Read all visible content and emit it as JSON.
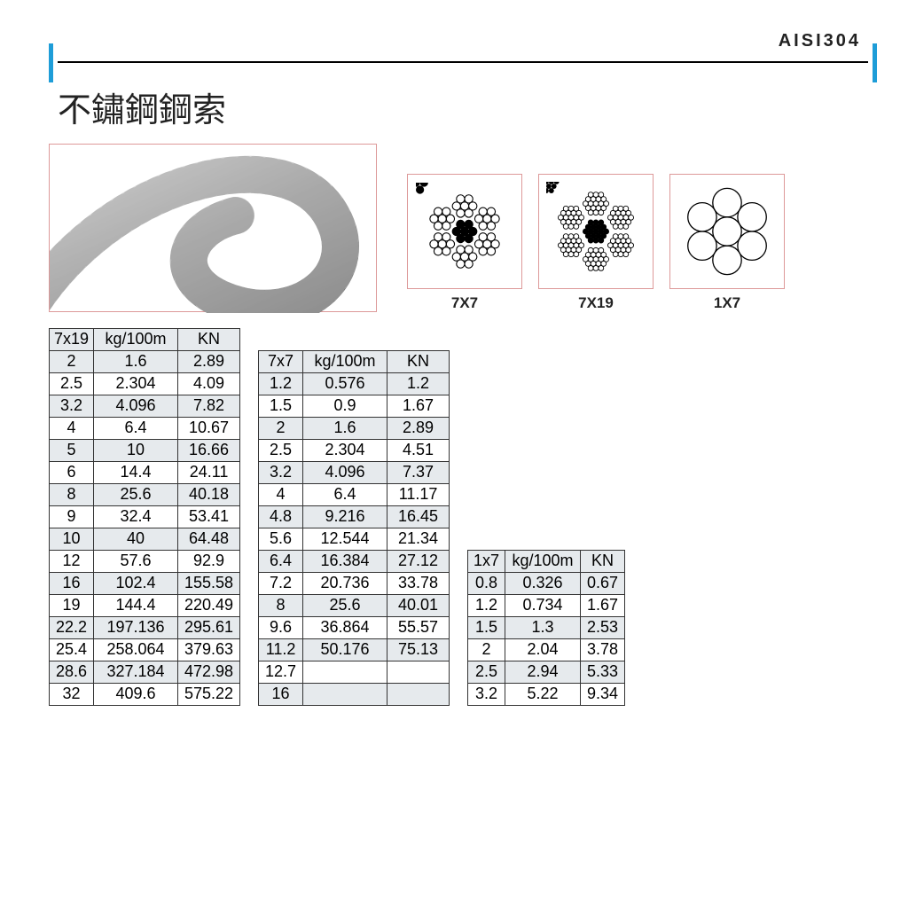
{
  "header": {
    "code": "AISI304",
    "title": "不鏽鋼鋼索",
    "accent_color": "#1e9dd8",
    "line_color": "#000000"
  },
  "photo_border_color": "#d99",
  "diagrams": [
    {
      "label": "7X7",
      "id": "diag-7x7"
    },
    {
      "label": "7X19",
      "id": "diag-7x19"
    },
    {
      "label": "1X7",
      "id": "diag-1x7"
    }
  ],
  "tables": {
    "header_bg": "#e6eaed",
    "stripe_bg": "#e6eaed",
    "border_color": "#333333"
  },
  "table1": {
    "columns": [
      "7x19",
      "kg/100m",
      "KN"
    ],
    "rows": [
      [
        "2",
        "1.6",
        "2.89"
      ],
      [
        "2.5",
        "2.304",
        "4.09"
      ],
      [
        "3.2",
        "4.096",
        "7.82"
      ],
      [
        "4",
        "6.4",
        "10.67"
      ],
      [
        "5",
        "10",
        "16.66"
      ],
      [
        "6",
        "14.4",
        "24.11"
      ],
      [
        "8",
        "25.6",
        "40.18"
      ],
      [
        "9",
        "32.4",
        "53.41"
      ],
      [
        "10",
        "40",
        "64.48"
      ],
      [
        "12",
        "57.6",
        "92.9"
      ],
      [
        "16",
        "102.4",
        "155.58"
      ],
      [
        "19",
        "144.4",
        "220.49"
      ],
      [
        "22.2",
        "197.136",
        "295.61"
      ],
      [
        "25.4",
        "258.064",
        "379.63"
      ],
      [
        "28.6",
        "327.184",
        "472.98"
      ],
      [
        "32",
        "409.6",
        "575.22"
      ]
    ]
  },
  "table2": {
    "columns": [
      "7x7",
      "kg/100m",
      "KN"
    ],
    "rows": [
      [
        "1.2",
        "0.576",
        "1.2"
      ],
      [
        "1.5",
        "0.9",
        "1.67"
      ],
      [
        "2",
        "1.6",
        "2.89"
      ],
      [
        "2.5",
        "2.304",
        "4.51"
      ],
      [
        "3.2",
        "4.096",
        "7.37"
      ],
      [
        "4",
        "6.4",
        "11.17"
      ],
      [
        "4.8",
        "9.216",
        "16.45"
      ],
      [
        "5.6",
        "12.544",
        "21.34"
      ],
      [
        "6.4",
        "16.384",
        "27.12"
      ],
      [
        "7.2",
        "20.736",
        "33.78"
      ],
      [
        "8",
        "25.6",
        "40.01"
      ],
      [
        "9.6",
        "36.864",
        "55.57"
      ],
      [
        "11.2",
        "50.176",
        "75.13"
      ],
      [
        "12.7",
        "",
        ""
      ],
      [
        "16",
        "",
        ""
      ]
    ]
  },
  "table3": {
    "columns": [
      "1x7",
      "kg/100m",
      "KN"
    ],
    "rows": [
      [
        "0.8",
        "0.326",
        "0.67"
      ],
      [
        "1.2",
        "0.734",
        "1.67"
      ],
      [
        "1.5",
        "1.3",
        "2.53"
      ],
      [
        "2",
        "2.04",
        "3.78"
      ],
      [
        "2.5",
        "2.94",
        "5.33"
      ],
      [
        "3.2",
        "5.22",
        "9.34"
      ]
    ]
  }
}
